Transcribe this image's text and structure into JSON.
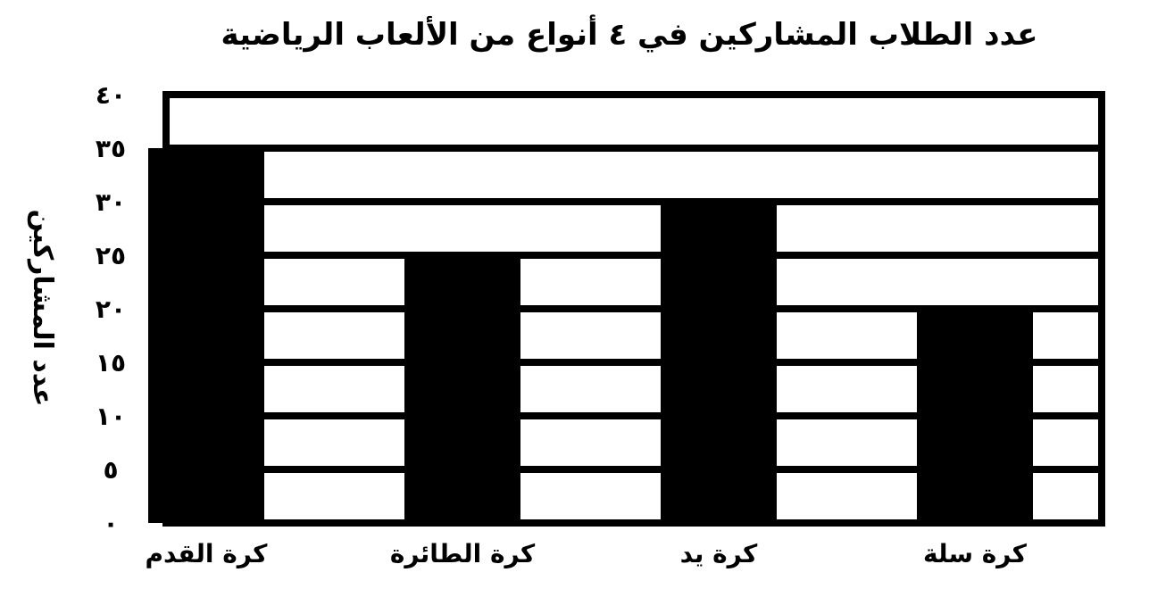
{
  "chart_data": {
    "type": "bar",
    "title": "عدد الطلاب المشاركين في ٤ أنواع من الألعاب الرياضية",
    "ylabel": "عدد المشاركين",
    "xlabel": "",
    "categories": [
      "كرة القدم",
      "كرة الطائرة",
      "كرة يد",
      "كرة سلة"
    ],
    "values": [
      35,
      25,
      30,
      20
    ],
    "ylim": [
      0,
      40
    ],
    "yticks": [
      0,
      5,
      10,
      15,
      20,
      25,
      30,
      35,
      40
    ],
    "ytick_labels": [
      "٠",
      "٥",
      "١٠",
      "١٥",
      "٢٠",
      "٢٥",
      "٣٠",
      "٣٥",
      "٤٠"
    ],
    "grid": true,
    "bar_color": "#000000",
    "grid_color": "#000000"
  }
}
